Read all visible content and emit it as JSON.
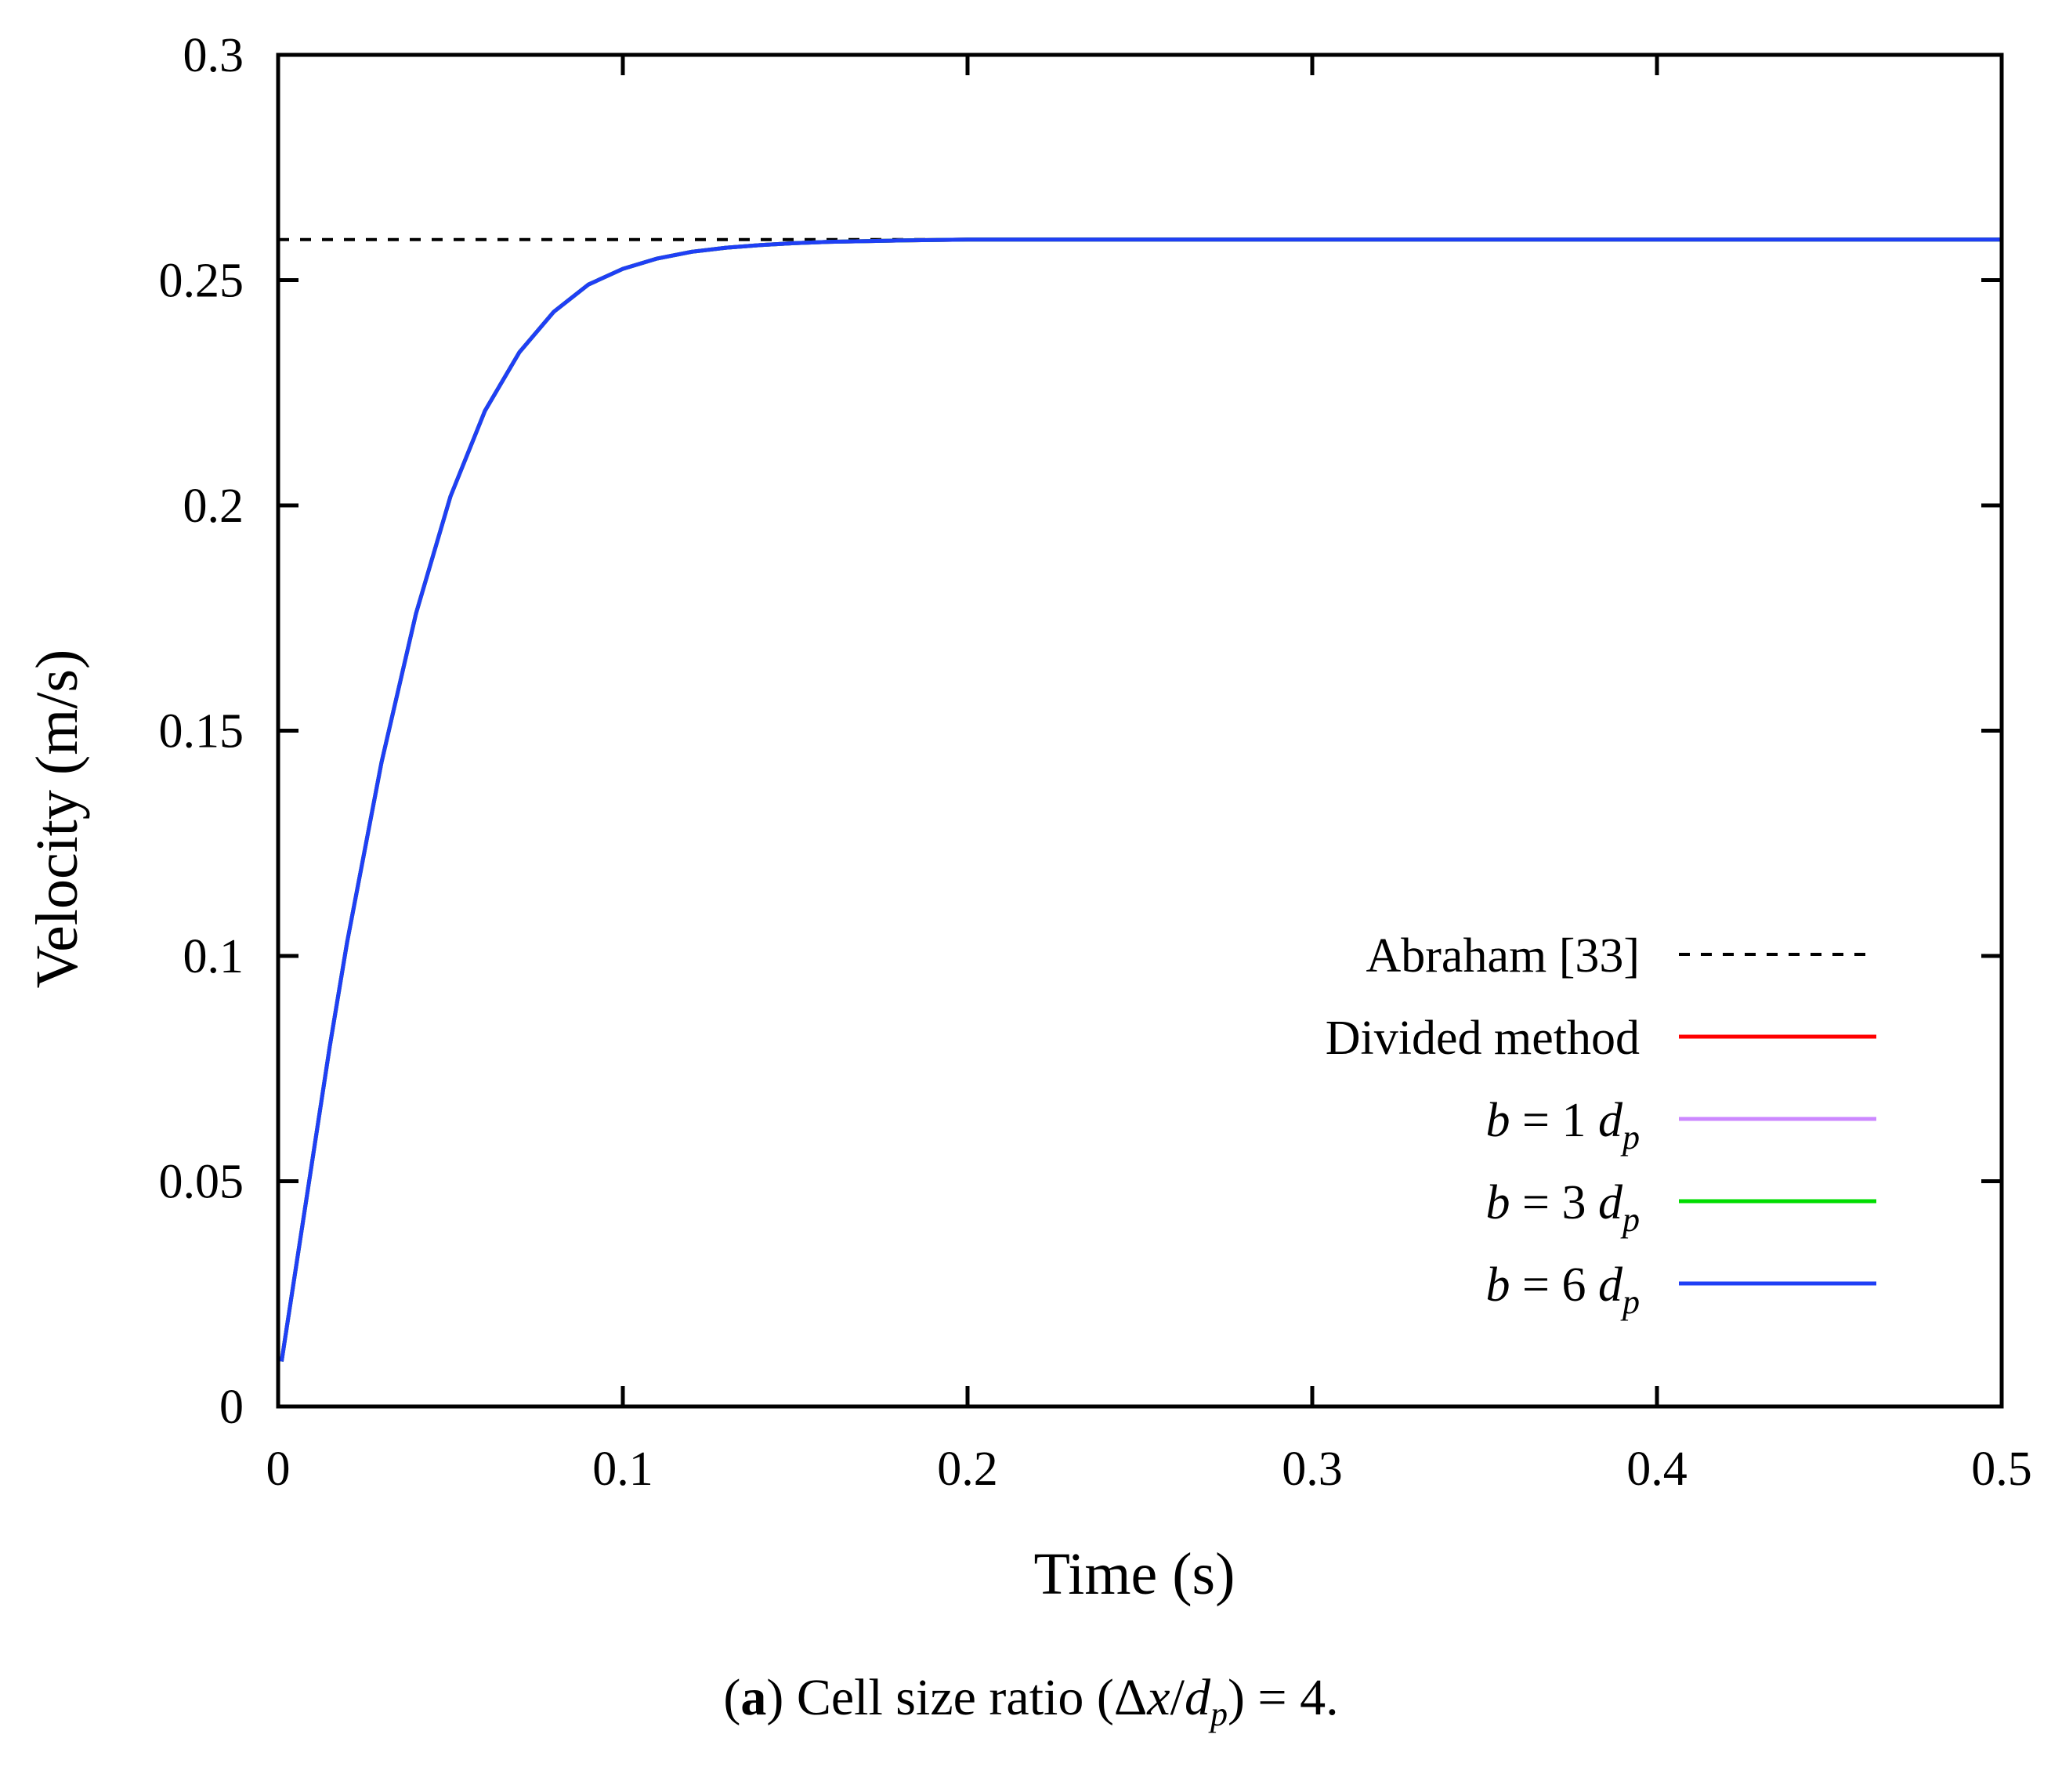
{
  "chart_data": {
    "type": "line",
    "xlabel": "Time (s)",
    "ylabel": "Velocity (m/s)",
    "xlim": [
      0,
      0.5
    ],
    "ylim": [
      0,
      0.3
    ],
    "xticks": [
      {
        "value": 0,
        "label": "0"
      },
      {
        "value": 0.1,
        "label": "0.1"
      },
      {
        "value": 0.2,
        "label": "0.2"
      },
      {
        "value": 0.3,
        "label": "0.3"
      },
      {
        "value": 0.4,
        "label": "0.4"
      },
      {
        "value": 0.5,
        "label": "0.5"
      }
    ],
    "yticks": [
      {
        "value": 0,
        "label": "0"
      },
      {
        "value": 0.05,
        "label": "0.05"
      },
      {
        "value": 0.1,
        "label": "0.1"
      },
      {
        "value": 0.15,
        "label": "0.15"
      },
      {
        "value": 0.2,
        "label": "0.2"
      },
      {
        "value": 0.25,
        "label": "0.25"
      },
      {
        "value": 0.3,
        "label": "0.3"
      }
    ],
    "grid": false,
    "legend_position": "bottom-right",
    "series": [
      {
        "name": "Abraham [33]",
        "color": "#000000",
        "style": "dashed",
        "x": [
          0,
          0.5
        ],
        "y": [
          0.259,
          0.259
        ]
      },
      {
        "name": "Divided method",
        "color": "#ff0000",
        "style": "solid",
        "x": [
          0.001,
          0.005,
          0.01,
          0.015,
          0.02,
          0.03,
          0.04,
          0.05,
          0.06,
          0.07,
          0.08,
          0.09,
          0.1,
          0.11,
          0.12,
          0.13,
          0.14,
          0.15,
          0.16,
          0.18,
          0.2,
          0.25,
          0.3,
          0.35,
          0.4,
          0.45,
          0.5
        ],
        "y": [
          0.01,
          0.03,
          0.055,
          0.08,
          0.103,
          0.143,
          0.176,
          0.202,
          0.221,
          0.234,
          0.243,
          0.249,
          0.2525,
          0.2548,
          0.2563,
          0.2572,
          0.2578,
          0.2582,
          0.2585,
          0.2588,
          0.259,
          0.259,
          0.259,
          0.259,
          0.259,
          0.259,
          0.259
        ]
      },
      {
        "name": "b = 1 dp",
        "color": "#cc88ff",
        "style": "solid",
        "x": [
          0.001,
          0.005,
          0.01,
          0.015,
          0.02,
          0.03,
          0.04,
          0.05,
          0.06,
          0.07,
          0.08,
          0.09,
          0.1,
          0.11,
          0.12,
          0.13,
          0.14,
          0.15,
          0.16,
          0.18,
          0.2,
          0.25,
          0.3,
          0.35,
          0.4,
          0.45,
          0.5
        ],
        "y": [
          0.01,
          0.03,
          0.055,
          0.08,
          0.103,
          0.143,
          0.176,
          0.202,
          0.221,
          0.234,
          0.243,
          0.249,
          0.2525,
          0.2548,
          0.2563,
          0.2572,
          0.2578,
          0.2582,
          0.2585,
          0.2588,
          0.259,
          0.259,
          0.259,
          0.259,
          0.259,
          0.259,
          0.259
        ]
      },
      {
        "name": "b = 3 dp",
        "color": "#00dd00",
        "style": "solid",
        "x": [
          0.001,
          0.005,
          0.01,
          0.015,
          0.02,
          0.03,
          0.04,
          0.05,
          0.06,
          0.07,
          0.08,
          0.09,
          0.1,
          0.11,
          0.12,
          0.13,
          0.14,
          0.15,
          0.16,
          0.18,
          0.2,
          0.25,
          0.3,
          0.35,
          0.4,
          0.45,
          0.5
        ],
        "y": [
          0.01,
          0.03,
          0.055,
          0.08,
          0.103,
          0.143,
          0.176,
          0.202,
          0.221,
          0.234,
          0.243,
          0.249,
          0.2525,
          0.2548,
          0.2563,
          0.2572,
          0.2578,
          0.2582,
          0.2585,
          0.2588,
          0.259,
          0.259,
          0.259,
          0.259,
          0.259,
          0.259,
          0.259
        ]
      },
      {
        "name": "b = 6 dp",
        "color": "#1f3ff5",
        "style": "solid",
        "x": [
          0.001,
          0.005,
          0.01,
          0.015,
          0.02,
          0.03,
          0.04,
          0.05,
          0.06,
          0.07,
          0.08,
          0.09,
          0.1,
          0.11,
          0.12,
          0.13,
          0.14,
          0.15,
          0.16,
          0.18,
          0.2,
          0.25,
          0.3,
          0.35,
          0.4,
          0.45,
          0.5
        ],
        "y": [
          0.01,
          0.03,
          0.055,
          0.08,
          0.103,
          0.143,
          0.176,
          0.202,
          0.221,
          0.234,
          0.243,
          0.249,
          0.2525,
          0.2548,
          0.2563,
          0.2572,
          0.2578,
          0.2582,
          0.2585,
          0.2588,
          0.259,
          0.259,
          0.259,
          0.259,
          0.259,
          0.259,
          0.259
        ]
      }
    ],
    "legend": [
      {
        "label": "Abraham [33]",
        "kind": "plain",
        "color": "#000000",
        "style": "dashed"
      },
      {
        "label": "Divided method",
        "kind": "plain",
        "color": "#ff0000",
        "style": "solid"
      },
      {
        "kind": "math",
        "b": "b",
        "eq": " = 1 ",
        "d": "d",
        "sub": "p",
        "color": "#cc88ff",
        "style": "solid"
      },
      {
        "kind": "math",
        "b": "b",
        "eq": " = 3 ",
        "d": "d",
        "sub": "p",
        "color": "#00dd00",
        "style": "solid"
      },
      {
        "kind": "math",
        "b": "b",
        "eq": " = 6 ",
        "d": "d",
        "sub": "p",
        "color": "#1f3ff5",
        "style": "solid"
      }
    ]
  },
  "caption": {
    "open_paren": "(",
    "letter": "a",
    "text_before": ") Cell size ratio (Δ",
    "x": "x",
    "slash": "/",
    "d": "d",
    "sub": "p",
    "text_after": ") = 4."
  }
}
